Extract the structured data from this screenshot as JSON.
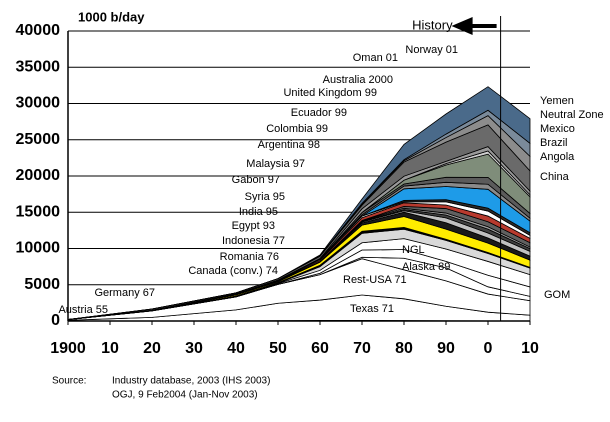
{
  "chart_data": {
    "type": "stacked_area",
    "y_label": "1000 b/day",
    "annotation": {
      "text": "History",
      "x": 2003
    },
    "x": [
      1900,
      1920,
      1940,
      1950,
      1960,
      1970,
      1980,
      1990,
      2000,
      2010
    ],
    "xlim": [
      1900,
      2010
    ],
    "xticks": [
      1900,
      {
        "value": 1910,
        "label": "10"
      },
      {
        "value": 1920,
        "label": "20"
      },
      {
        "value": 1930,
        "label": "30"
      },
      {
        "value": 1940,
        "label": "40"
      },
      {
        "value": 1950,
        "label": "50"
      },
      {
        "value": 1960,
        "label": "60"
      },
      {
        "value": 1970,
        "label": "70"
      },
      {
        "value": 1980,
        "label": "80"
      },
      {
        "value": 1990,
        "label": "90"
      },
      {
        "value": 2000,
        "label": "0"
      },
      {
        "value": 2010,
        "label": "10"
      }
    ],
    "ylim": [
      0,
      40000
    ],
    "yticks": [
      0,
      5000,
      10000,
      15000,
      20000,
      25000,
      30000,
      35000,
      40000
    ],
    "grid": true,
    "series": [
      {
        "name": "Austria 55",
        "color": "#ffffff",
        "values": [
          0,
          0,
          10,
          20,
          40,
          30,
          20,
          10,
          5,
          0
        ]
      },
      {
        "name": "Germany 67",
        "color": "#ffffff",
        "values": [
          0,
          0,
          20,
          30,
          50,
          60,
          40,
          20,
          10,
          0
        ]
      },
      {
        "name": "Texas 71",
        "color": "#ffffff",
        "values": [
          100,
          500,
          1500,
          2400,
          2800,
          3500,
          3000,
          2000,
          1200,
          800
        ]
      },
      {
        "name": "Rest-USA 71",
        "color": "#ffffff",
        "values": [
          100,
          900,
          1800,
          2600,
          3500,
          5000,
          4000,
          3500,
          2500,
          2000
        ]
      },
      {
        "name": "Alaska 89",
        "color": "#ffffff",
        "values": [
          0,
          0,
          0,
          0,
          0,
          200,
          1600,
          1800,
          1000,
          600
        ]
      },
      {
        "name": "GOM",
        "color": "#ffffff",
        "values": [
          0,
          0,
          0,
          0,
          200,
          1000,
          1200,
          900,
          1600,
          1300
        ]
      },
      {
        "name": "NGL",
        "color": "#ffffff",
        "values": [
          0,
          0,
          0,
          100,
          400,
          1000,
          1500,
          1700,
          1900,
          1700
        ]
      },
      {
        "name": "Canada (conv.) 74",
        "color": "#d9d9d9",
        "values": [
          0,
          10,
          20,
          60,
          500,
          1300,
          1300,
          1200,
          1100,
          900
        ]
      },
      {
        "name": "Romania 76",
        "color": "#000000",
        "values": [
          0,
          30,
          100,
          80,
          200,
          280,
          250,
          150,
          130,
          100
        ]
      },
      {
        "name": "Indonesia 77",
        "color": "#ffec00",
        "values": [
          0,
          40,
          150,
          130,
          420,
          850,
          1500,
          1400,
          1300,
          1000
        ]
      },
      {
        "name": "Egypt 93",
        "color": "#1a1a1a",
        "values": [
          0,
          0,
          20,
          50,
          60,
          300,
          600,
          870,
          700,
          550
        ]
      },
      {
        "name": "India 95",
        "color": "#c0c0c0",
        "values": [
          0,
          0,
          10,
          10,
          20,
          140,
          200,
          670,
          700,
          650
        ]
      },
      {
        "name": "Syria 95",
        "color": "#404040",
        "values": [
          0,
          0,
          0,
          0,
          0,
          80,
          160,
          400,
          530,
          380
        ]
      },
      {
        "name": "Gabon 97",
        "color": "#a0a0a0",
        "values": [
          0,
          0,
          0,
          0,
          10,
          100,
          175,
          270,
          320,
          220
        ]
      },
      {
        "name": "Malaysia 97",
        "color": "#606060",
        "values": [
          0,
          0,
          0,
          0,
          0,
          20,
          270,
          620,
          700,
          600
        ]
      },
      {
        "name": "Argentina 98",
        "color": "#b83a2e",
        "values": [
          0,
          20,
          60,
          70,
          170,
          390,
          490,
          490,
          780,
          600
        ]
      },
      {
        "name": "Colombia 99",
        "color": "#ffffff",
        "values": [
          0,
          0,
          60,
          90,
          150,
          220,
          130,
          440,
          690,
          400
        ]
      },
      {
        "name": "Ecuador 99",
        "color": "#2a2a2a",
        "values": [
          0,
          0,
          5,
          10,
          10,
          5,
          200,
          290,
          400,
          380
        ]
      },
      {
        "name": "United Kingdom 99",
        "color": "#1e9be8",
        "values": [
          0,
          0,
          0,
          0,
          0,
          0,
          1600,
          1820,
          2600,
          1600
        ]
      },
      {
        "name": "Australia 2000",
        "color": "#8a8a8a",
        "values": [
          0,
          0,
          0,
          0,
          0,
          170,
          380,
          580,
          700,
          400
        ]
      },
      {
        "name": "Oman 01",
        "color": "#5b5b5b",
        "values": [
          0,
          0,
          0,
          0,
          0,
          330,
          280,
          690,
          950,
          650
        ]
      },
      {
        "name": "Norway 01",
        "color": "#7f8d7a",
        "values": [
          0,
          0,
          0,
          0,
          0,
          0,
          530,
          1700,
          3200,
          2300
        ]
      },
      {
        "name": "Yemen",
        "color": "#cfcfcf",
        "values": [
          0,
          0,
          0,
          0,
          0,
          0,
          0,
          190,
          440,
          280
        ]
      },
      {
        "name": "Neutral Zone",
        "color": "#9a9a9a",
        "values": [
          0,
          0,
          0,
          0,
          100,
          500,
          550,
          310,
          600,
          500
        ]
      },
      {
        "name": "Mexico",
        "color": "#6a6a6a",
        "values": [
          0,
          160,
          120,
          200,
          300,
          490,
          1950,
          2650,
          3000,
          2800
        ]
      },
      {
        "name": "Brazil",
        "color": "#8c8c8c",
        "values": [
          0,
          0,
          0,
          0,
          80,
          160,
          180,
          630,
          1270,
          2000
        ]
      },
      {
        "name": "Angola",
        "color": "#7a8a9a",
        "values": [
          0,
          0,
          0,
          0,
          0,
          100,
          150,
          480,
          740,
          1800
        ]
      },
      {
        "name": "China",
        "color": "#4a6a8a",
        "values": [
          0,
          0,
          0,
          0,
          100,
          600,
          2100,
          2770,
          3250,
          3400
        ]
      }
    ],
    "source_label": "Source:",
    "source_lines": [
      "Industry database, 2003 (IHS 2003)",
      "OGJ, 9 Feb2004 (Jan-Nov 2003)"
    ]
  }
}
